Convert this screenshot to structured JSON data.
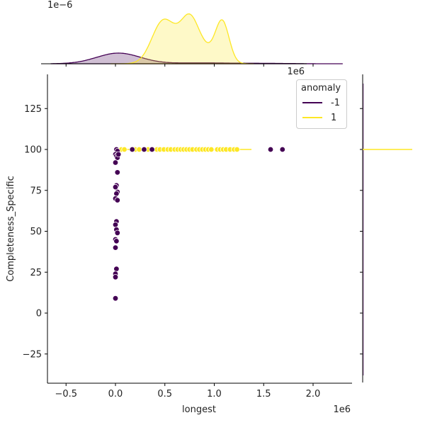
{
  "chart_data": {
    "type": "scatter",
    "title": "",
    "xlabel": "longest",
    "ylabel": "Completeness_Specific",
    "x_offset_label": "1e6",
    "top_marginal_offset_label": "1e−6",
    "top_marginal_x_offset_label": "1e6",
    "xlim": [
      -0.7,
      2.4
    ],
    "ylim": [
      -42,
      145
    ],
    "x_ticks": [
      -0.5,
      0.0,
      0.5,
      1.0,
      1.5,
      2.0
    ],
    "x_tick_labels": [
      "−0.5",
      "0.0",
      "0.5",
      "1.0",
      "1.5",
      "2.0"
    ],
    "y_ticks": [
      -25,
      0,
      25,
      50,
      75,
      100,
      125
    ],
    "y_tick_labels": [
      "−25",
      "0",
      "25",
      "50",
      "75",
      "100",
      "125"
    ],
    "grid": false,
    "legend": {
      "title": "anomaly",
      "position": "upper right",
      "entries": [
        "-1",
        "1"
      ]
    },
    "colors": {
      "-1": "#440154",
      "1": "#fde725"
    },
    "series": [
      {
        "name": "-1",
        "color": "#440154",
        "x": [
          0.01,
          0.02,
          0.0,
          0.01,
          0.02,
          0.0,
          0.03,
          0.02,
          0.01,
          0.0,
          0.02,
          0.01,
          0.0,
          0.02,
          0.01,
          0.0,
          0.01,
          0.02,
          0.0,
          0.01,
          0.0,
          0.01,
          0.0,
          0.0,
          0.0,
          0.17,
          0.29,
          0.37,
          1.57,
          1.69
        ],
        "y": [
          100,
          99,
          97,
          96,
          95,
          92,
          97,
          86,
          78,
          77,
          74,
          73,
          70,
          69,
          56,
          54,
          51,
          49,
          45,
          44,
          40,
          27,
          24,
          22,
          9,
          100,
          100,
          100,
          100,
          100
        ]
      },
      {
        "name": "1",
        "color": "#fde725",
        "x": [
          0.06,
          0.09,
          0.2,
          0.24,
          0.33,
          0.38,
          0.42,
          0.45,
          0.49,
          0.53,
          0.56,
          0.6,
          0.63,
          0.66,
          0.69,
          0.72,
          0.75,
          0.78,
          0.82,
          0.85,
          0.88,
          0.91,
          0.94,
          0.97,
          1.03,
          1.06,
          1.09,
          1.12,
          1.16,
          1.2,
          1.23
        ],
        "y": [
          100,
          100,
          100,
          100,
          100,
          100,
          100,
          100,
          100,
          100,
          100,
          100,
          100,
          100,
          100,
          100,
          100,
          100,
          100,
          100,
          100,
          100,
          100,
          100,
          100,
          100,
          100,
          100,
          100,
          100,
          100
        ]
      }
    ],
    "marginals": {
      "top": {
        "type": "kde",
        "-1": {
          "peak_x": 0.03,
          "peak_density_rel": 0.22
        },
        "1": {
          "peaks_x": [
            0.47,
            0.77,
            1.08
          ],
          "peak_density_rel": [
            0.93,
            0.97,
            1.0
          ]
        }
      },
      "right": {
        "type": "kde",
        "1": {
          "spike_y": 100
        },
        "-1": {
          "spread": "flat along y"
        }
      }
    }
  }
}
